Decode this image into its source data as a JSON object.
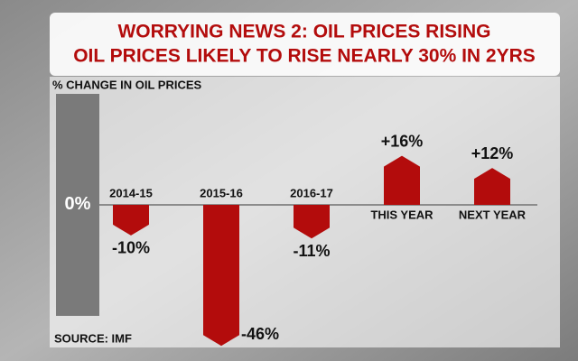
{
  "chart_data": {
    "type": "bar",
    "title": "WORRYING NEWS 2: OIL PRICES RISING",
    "subtitle": "OIL PRICES LIKELY TO RISE NEARLY 30% IN 2YRS",
    "y_label": "% CHANGE IN OIL PRICES",
    "source": "SOURCE: IMF",
    "categories": [
      "2014-15",
      "2015-16",
      "2016-17",
      "THIS YEAR",
      "NEXT YEAR"
    ],
    "values": [
      -10,
      -46,
      -11,
      16,
      12
    ],
    "value_labels": [
      "-10%",
      "-46%",
      "-11%",
      "+16%",
      "+12%"
    ],
    "color": "#b30c0c",
    "ylim": [
      -48,
      20
    ],
    "yticks": [
      {
        "value": 0,
        "label": "0%"
      }
    ]
  }
}
